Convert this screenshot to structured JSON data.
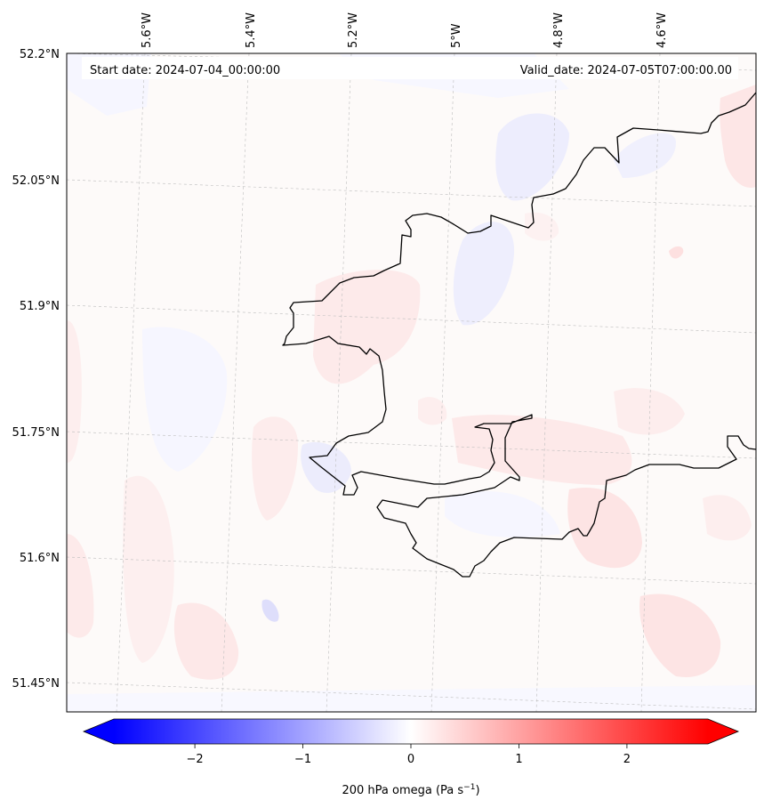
{
  "header": {
    "start_date": "Start date: 2024-07-04_00:00:00",
    "valid_date": "Valid_date: 2024-07-05T07:00:00.00"
  },
  "lon_labels": [
    "5.6°W",
    "5.4°W",
    "5.2°W",
    "5°W",
    "4.8°W",
    "4.6°W"
  ],
  "lat_labels": [
    "52.2°N",
    "52.05°N",
    "51.9°N",
    "51.75°N",
    "51.6°N",
    "51.45°N"
  ],
  "colorbar": {
    "ticks": [
      "−2",
      "−1",
      "0",
      "1",
      "2"
    ],
    "label": "200 hPa omega (Pa s",
    "label_sup": "−1",
    "label_close": ")",
    "range": [
      -2.75,
      2.75
    ],
    "colormap": "bwr",
    "min_color": "#0000ff",
    "mid_color": "#ffffff",
    "max_color": "#ff0000"
  },
  "chart_data": {
    "type": "heatmap",
    "title": "",
    "xlabel": "",
    "ylabel": "",
    "variable": "200 hPa omega",
    "units": "Pa s^-1",
    "lon_ticks": [
      -5.6,
      -5.4,
      -5.2,
      -5.0,
      -4.8,
      -4.6
    ],
    "lat_ticks": [
      52.2,
      52.05,
      51.9,
      51.75,
      51.6,
      51.45
    ],
    "value_range_visible": [
      -0.3,
      0.3
    ],
    "gridlines": true,
    "coastline": true
  }
}
